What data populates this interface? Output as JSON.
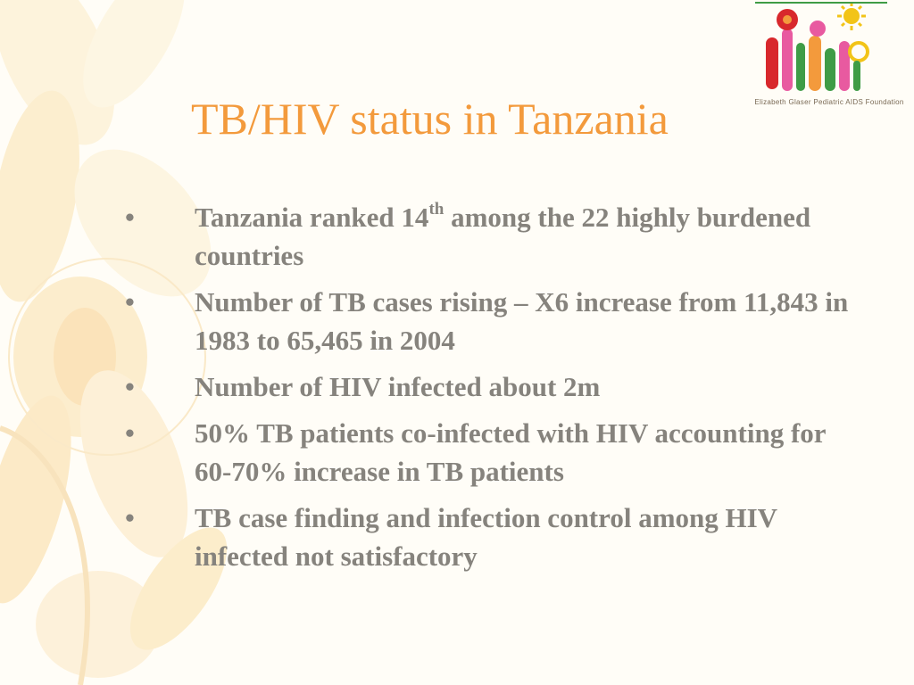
{
  "title": "TB/HIV status in Tanzania",
  "logo": {
    "organization": "Elizabeth Glaser Pediatric AIDS Foundation",
    "colors": [
      "#d8282c",
      "#e85aa0",
      "#3f9c46",
      "#f2c418",
      "#f39a3c"
    ]
  },
  "bullet_symbol": "•",
  "bullets": [
    {
      "before": "Tanzania ranked 14",
      "sup": "th",
      "after": " among the 22 highly burdened countries"
    },
    {
      "before": "Number of TB cases rising – X6 increase from 11,843 in 1983 to 65,465 in 2004"
    },
    {
      "before": "Number of HIV infected about 2m"
    },
    {
      "before": "50% TB patients co-infected with HIV accounting for 60-70% increase in TB patients"
    },
    {
      "before": "TB case finding and infection control among HIV infected not satisfactory"
    }
  ],
  "colors": {
    "title": "#f39a3c",
    "body_text": "#86837d",
    "background": "#fffdf7",
    "decor": "#fbe3b0"
  }
}
